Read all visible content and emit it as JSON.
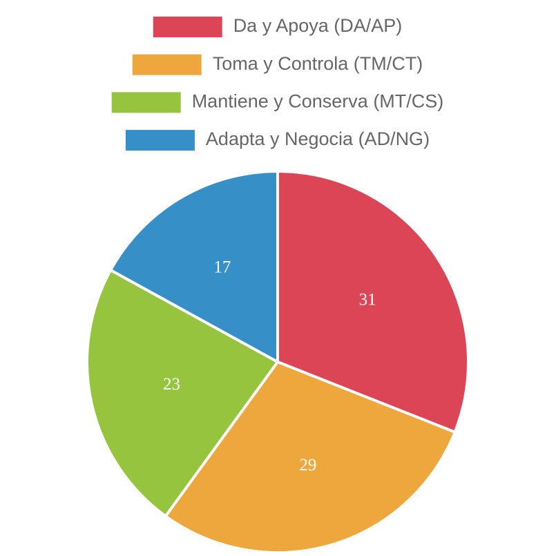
{
  "chart_data": {
    "type": "pie",
    "categories": [
      "Da y Apoya (DA/AP)",
      "Toma y Controla (TM/CT)",
      "Mantiene y Conserva (MT/CS)",
      "Adapta y Negocia (AD/NG)"
    ],
    "values": [
      31,
      29,
      23,
      17
    ],
    "colors": [
      "#dc4555",
      "#eea73c",
      "#97c43f",
      "#368fc7"
    ],
    "legend": "top"
  }
}
